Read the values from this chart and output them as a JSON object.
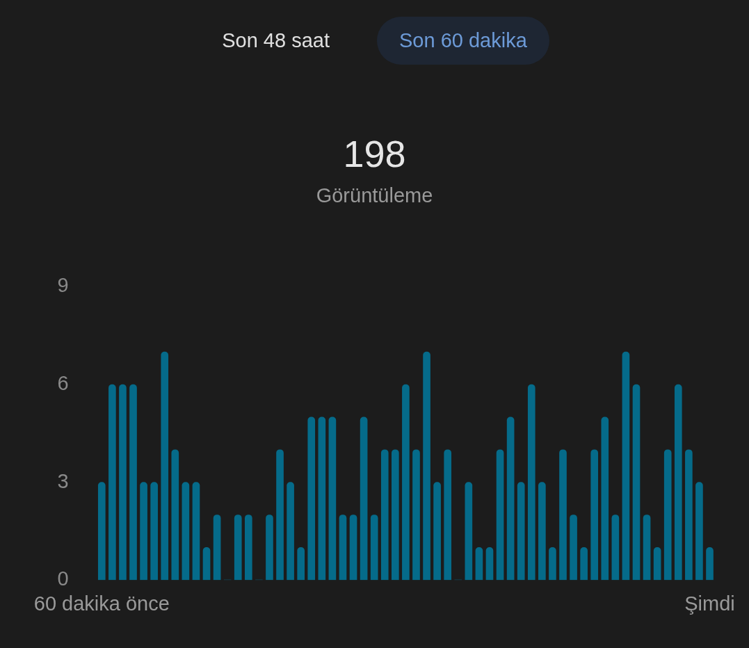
{
  "chart_data": {
    "type": "bar",
    "title": "198",
    "subtitle": "Görüntüleme",
    "annotations": [
      "Son 48 saat",
      "Son 60 dakika"
    ],
    "categories": [
      "60 dakika önce",
      null,
      null,
      null,
      null,
      null,
      null,
      null,
      null,
      null,
      null,
      null,
      null,
      null,
      null,
      null,
      null,
      null,
      null,
      null,
      null,
      null,
      null,
      null,
      null,
      null,
      null,
      null,
      null,
      null,
      null,
      null,
      null,
      null,
      null,
      null,
      null,
      null,
      null,
      null,
      null,
      null,
      null,
      null,
      null,
      null,
      null,
      null,
      null,
      null,
      null,
      null,
      null,
      null,
      null,
      null,
      null,
      null,
      "Şimdi"
    ],
    "values": [
      3,
      6,
      6,
      6,
      3,
      3,
      7,
      4,
      3,
      3,
      1,
      2,
      0,
      2,
      2,
      0,
      2,
      4,
      3,
      1,
      5,
      5,
      5,
      2,
      2,
      5,
      2,
      4,
      4,
      6,
      4,
      7,
      3,
      4,
      0,
      3,
      1,
      1,
      4,
      5,
      3,
      6,
      3,
      1,
      4,
      2,
      1,
      4,
      5,
      2,
      7,
      6,
      2,
      1,
      4,
      6,
      4,
      3,
      1
    ],
    "color": "#056b8a",
    "ylim": [
      0,
      9
    ],
    "yticks": [
      0,
      3,
      6,
      9
    ],
    "grid": false,
    "legend": false
  }
}
